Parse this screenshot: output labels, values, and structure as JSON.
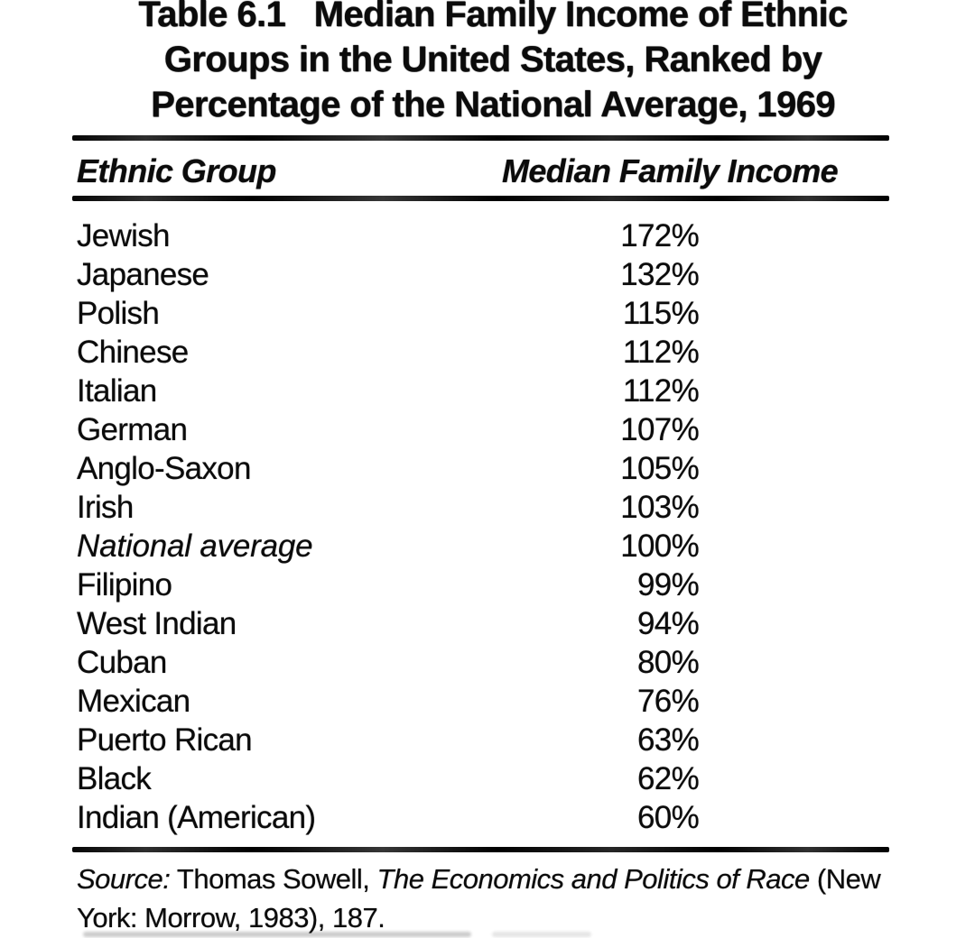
{
  "page": {
    "background_color": "#ffffff",
    "ink_color": "#0b0b0b",
    "kind": "scanned book page with data table"
  },
  "table": {
    "number": "Table 6.1",
    "title": "Median Family Income of Ethnic Groups in the United States, Ranked by Percentage of the National Average, 1969",
    "title_lines": [
      "Table 6.1   Median Family Income of Ethnic",
      "Groups in the United States, Ranked by",
      "Percentage of the National Average, 1969"
    ],
    "columns": [
      "Ethnic Group",
      "Median Family Income"
    ],
    "rows": [
      {
        "group": "Jewish",
        "value": "172%"
      },
      {
        "group": "Japanese",
        "value": "132%"
      },
      {
        "group": "Polish",
        "value": "115%"
      },
      {
        "group": "Chinese",
        "value": "112%"
      },
      {
        "group": "Italian",
        "value": "112%"
      },
      {
        "group": "German",
        "value": "107%"
      },
      {
        "group": "Anglo-Saxon",
        "value": "105%"
      },
      {
        "group": "Irish",
        "value": "103%"
      },
      {
        "group": "National average",
        "value": "100%"
      },
      {
        "group": "Filipino",
        "value": "99%"
      },
      {
        "group": "West Indian",
        "value": "94%"
      },
      {
        "group": "Cuban",
        "value": "80%"
      },
      {
        "group": "Mexican",
        "value": "76%"
      },
      {
        "group": "Puerto Rican",
        "value": "63%"
      },
      {
        "group": "Black",
        "value": "62%"
      },
      {
        "group": "Indian (American)",
        "value": "60%"
      }
    ]
  },
  "source": {
    "prefix": "Source:",
    "author_segment": " Thomas Sowell, ",
    "book_title": "The Economics and Politics of Race",
    "line1_suffix": " (New",
    "line2": "York: Morrow, 1983), 187."
  },
  "chart_data": {
    "type": "table",
    "title": "Table 6.1 Median Family Income of Ethnic Groups in the United States, Ranked by Percentage of the National Average, 1969",
    "columns": [
      "Ethnic Group",
      "Median Family Income (% of national average)"
    ],
    "categories": [
      "Jewish",
      "Japanese",
      "Polish",
      "Chinese",
      "Italian",
      "German",
      "Anglo-Saxon",
      "Irish",
      "National average",
      "Filipino",
      "West Indian",
      "Cuban",
      "Mexican",
      "Puerto Rican",
      "Black",
      "Indian (American)"
    ],
    "values": [
      172,
      132,
      115,
      112,
      112,
      107,
      105,
      103,
      100,
      99,
      94,
      80,
      76,
      63,
      62,
      60
    ],
    "unit": "percent",
    "year": 1969,
    "source": "Thomas Sowell, The Economics and Politics of Race (New York: Morrow, 1983), 187."
  }
}
